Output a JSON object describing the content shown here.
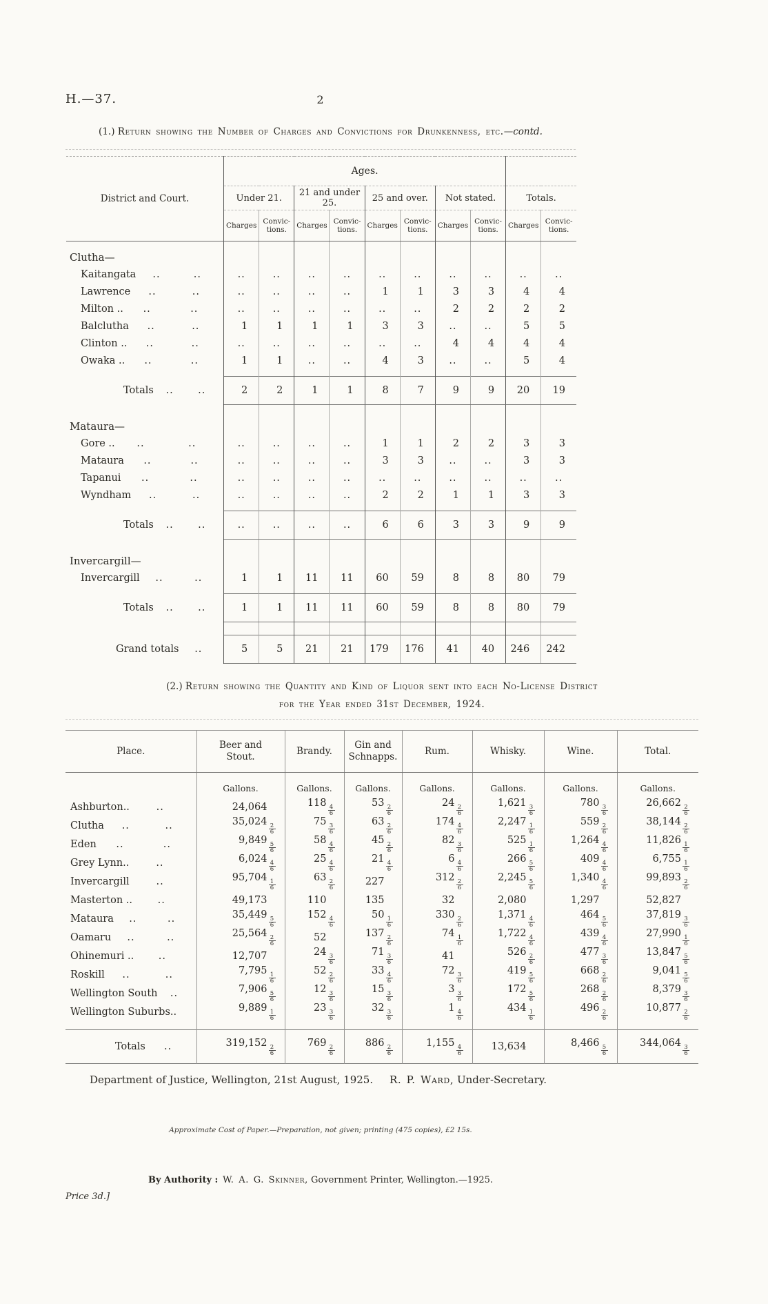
{
  "ink": "#2a2823",
  "paper": "#fbfaf6",
  "page": {
    "doc_ref": "H.—37.",
    "page_number": "2"
  },
  "table1": {
    "title_prefix": "(1.)",
    "title_main": "Return showing the Number of Charges and Convictions for Drunkenness, etc.",
    "title_contd": "—contd.",
    "header": {
      "district": "District and Court.",
      "ages": "Ages.",
      "groups": [
        "Under 21.",
        "21 and under 25.",
        "25 and over.",
        "Not stated.",
        "Totals."
      ],
      "charges": "Charges",
      "convictions": "Convic-\ntions."
    },
    "sections": [
      {
        "name": "Clutha—",
        "rows": [
          {
            "label": "Kaitangata",
            "values": [
              "..",
              "..",
              "..",
              "..",
              "..",
              "..",
              "..",
              "..",
              "..",
              ".."
            ]
          },
          {
            "label": "Lawrence",
            "values": [
              "..",
              "..",
              "..",
              "..",
              "1",
              "1",
              "3",
              "3",
              "4",
              "4"
            ]
          },
          {
            "label": "Milton ..",
            "values": [
              "..",
              "..",
              "..",
              "..",
              "..",
              "..",
              "2",
              "2",
              "2",
              "2"
            ]
          },
          {
            "label": "Balclutha",
            "values": [
              "1",
              "1",
              "1",
              "1",
              "3",
              "3",
              "..",
              "..",
              "5",
              "5"
            ]
          },
          {
            "label": "Clinton ..",
            "values": [
              "..",
              "..",
              "..",
              "..",
              "..",
              "..",
              "4",
              "4",
              "4",
              "4"
            ]
          },
          {
            "label": "Owaka ..",
            "values": [
              "1",
              "1",
              "..",
              "..",
              "4",
              "3",
              "..",
              "..",
              "5",
              "4"
            ]
          }
        ],
        "totals_label": "Totals",
        "totals": [
          "2",
          "2",
          "1",
          "1",
          "8",
          "7",
          "9",
          "9",
          "20",
          "19"
        ]
      },
      {
        "name": "Mataura—",
        "rows": [
          {
            "label": "Gore  ..",
            "values": [
              "..",
              "..",
              "..",
              "..",
              "1",
              "1",
              "2",
              "2",
              "3",
              "3"
            ]
          },
          {
            "label": "Mataura",
            "values": [
              "..",
              "..",
              "..",
              "..",
              "3",
              "3",
              "..",
              "..",
              "3",
              "3"
            ]
          },
          {
            "label": "Tapanui",
            "values": [
              "..",
              "..",
              "..",
              "..",
              "..",
              "..",
              "..",
              "..",
              "..",
              ".."
            ]
          },
          {
            "label": "Wyndham",
            "values": [
              "..",
              "..",
              "..",
              "..",
              "2",
              "2",
              "1",
              "1",
              "3",
              "3"
            ]
          }
        ],
        "totals_label": "Totals",
        "totals": [
          "..",
          "..",
          "..",
          "..",
          "6",
          "6",
          "3",
          "3",
          "9",
          "9"
        ]
      },
      {
        "name": "Invercargill—",
        "rows": [
          {
            "label": "Invercargill",
            "values": [
              "1",
              "1",
              "11",
              "11",
              "60",
              "59",
              "8",
              "8",
              "80",
              "79"
            ]
          }
        ],
        "totals_label": "Totals",
        "totals": [
          "1",
          "1",
          "11",
          "11",
          "60",
          "59",
          "8",
          "8",
          "80",
          "79"
        ]
      }
    ],
    "grand_totals": {
      "label": "Grand totals",
      "values": [
        "5",
        "5",
        "21",
        "21",
        "179",
        "176",
        "41",
        "40",
        "246",
        "242"
      ]
    }
  },
  "table2": {
    "title_prefix": "(2.)",
    "title_line1": "Return showing the Quantity and Kind of Liquor sent into each No-License District",
    "title_line2": "for the Year ended 31st December, 1924.",
    "columns": [
      "Place.",
      "Beer and\nStout.",
      "Brandy.",
      "Gin and\nSchnapps.",
      "Rum.",
      "Whisky.",
      "Wine.",
      "Total."
    ],
    "unit_label": "Gallons.",
    "rows": [
      {
        "place": "Ashburton..",
        "leaders": 1,
        "values": [
          "24,064",
          "118 4/6",
          "53 2/6",
          "24 2/6",
          "1,621 3/6",
          "780 3/6",
          "26,662 2/6"
        ]
      },
      {
        "place": "Clutha",
        "leaders": 2,
        "values": [
          "35,024 2/6",
          "75 3/6",
          "63 2/6",
          "174 4/6",
          "2,247 1/6",
          "559 2/6",
          "38,144 2/6"
        ]
      },
      {
        "place": "Eden",
        "leaders": 2,
        "values": [
          "9,849 5/6",
          "58 4/6",
          "45 2/6",
          "82 3/6",
          "525 1/6",
          "1,264 4/6",
          "11,826 1/6"
        ]
      },
      {
        "place": "Grey Lynn..",
        "leaders": 1,
        "values": [
          "6,024 4/6",
          "25 4/6",
          "21 4/6",
          "6 4/6",
          "266 5/6",
          "409 4/6",
          "6,755 1/6"
        ]
      },
      {
        "place": "Invercargill",
        "leaders": 1,
        "values": [
          "95,704 1/6",
          "63 2/6",
          "227",
          "312 2/6",
          "2,245 5/6",
          "1,340 4/6",
          "99,893 2/6"
        ]
      },
      {
        "place": "Masterton ..",
        "leaders": 1,
        "values": [
          "49,173",
          "110",
          "135",
          "32",
          "2,080",
          "1,297",
          "52,827"
        ]
      },
      {
        "place": "Mataura",
        "leaders": 2,
        "values": [
          "35,449 5/6",
          "152 4/6",
          "50 1/6",
          "330 2/6",
          "1,371 4/6",
          "464 5/6",
          "37,819 3/6"
        ]
      },
      {
        "place": "Oamaru",
        "leaders": 2,
        "values": [
          "25,564 2/6",
          "52",
          "137 2/6",
          "74 1/6",
          "1,722 4/6",
          "439 4/6",
          "27,990 1/6"
        ]
      },
      {
        "place": "Ohinemuri ..",
        "leaders": 1,
        "values": [
          "12,707",
          "24 3/6",
          "71 3/6",
          "41",
          "526 2/6",
          "477 3/6",
          "13,847 5/6"
        ]
      },
      {
        "place": "Roskill",
        "leaders": 2,
        "values": [
          "7,795 1/6",
          "52 2/6",
          "33 4/6",
          "72 3/6",
          "419 5/6",
          "668 2/6",
          "9,041 5/6"
        ]
      },
      {
        "place": "Wellington South",
        "leaders": 1,
        "values": [
          "7,906 5/6",
          "12 3/6",
          "15 3/6",
          "3 3/6",
          "172 5/6",
          "268 2/6",
          "8,379 3/6"
        ]
      },
      {
        "place": "Wellington Suburbs..",
        "leaders": 0,
        "values": [
          "9,889 1/6",
          "23 3/6",
          "32 3/6",
          "1 4/6",
          "434 1/6",
          "496 2/6",
          "10,877 2/6"
        ]
      }
    ],
    "totals": {
      "place": "Totals",
      "leaders": 1,
      "values": [
        "319,152 2/6",
        "769 2/6",
        "886 2/6",
        "1,155 4/6",
        "13,634",
        "8,466 5/6",
        "344,064 3/6"
      ]
    }
  },
  "footer": {
    "dept_line": "Department of Justice, Wellington, 21st August, 1925.",
    "signature_name": "R. P. Ward,",
    "signature_title": " Under-Secretary.",
    "cost_line": "Approximate Cost of Paper.—Preparation, not given; printing (475 copies), £2 15s.",
    "authority_prefix": "By Authority :",
    "authority_name": " W. A. G. Skinner,",
    "authority_rest": " Government Printer, Wellington.—1925.",
    "price": "Price 3d.]"
  }
}
